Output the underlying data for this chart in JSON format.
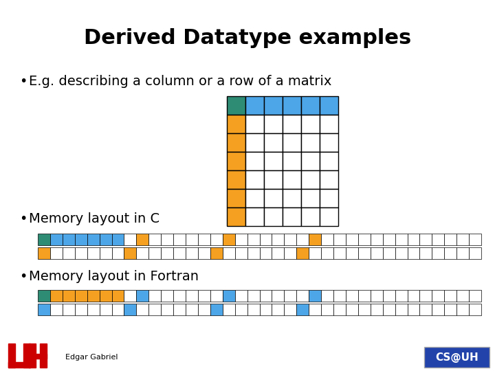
{
  "title": "Derived Datatype examples",
  "bullet1": "E.g. describing a column or a row of a matrix",
  "bullet2": "Memory layout in C",
  "bullet3": "Memory layout in Fortran",
  "footer": "Edgar Gabriel",
  "teal": "#2e8b74",
  "blue": "#4da6e8",
  "orange": "#f5a020",
  "white": "#ffffff",
  "black": "#000000",
  "bg_color": "#ffffff",
  "title_fontsize": 22,
  "body_fontsize": 14,
  "n_cells": 36,
  "grid_rows": 7,
  "grid_cols": 6
}
